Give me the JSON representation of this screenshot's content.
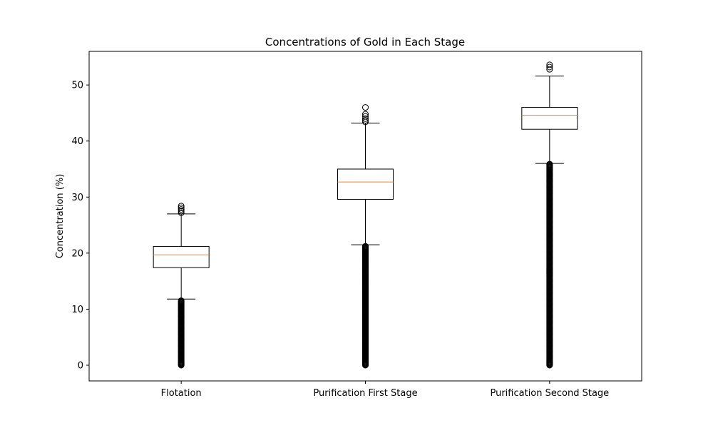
{
  "chart_data": {
    "type": "box",
    "title": "Concentrations of Gold in Each Stage",
    "xlabel": "",
    "ylabel": "Concentration (%)",
    "ylim": [
      -2.8,
      56.0
    ],
    "yticks": [
      0,
      10,
      20,
      30,
      40,
      50
    ],
    "grid": false,
    "categories": [
      "Flotation",
      "Purification First Stage",
      "Purification Second Stage"
    ],
    "boxes": [
      {
        "category": "Flotation",
        "whisker_low": 11.8,
        "q1": 17.4,
        "median": 19.7,
        "q3": 21.2,
        "whisker_high": 27.0,
        "outliers_high": [
          27.2,
          27.5,
          27.8,
          28.1,
          28.4
        ],
        "outliers_low_range": [
          0.0,
          11.6
        ]
      },
      {
        "category": "Purification First Stage",
        "whisker_low": 21.5,
        "q1": 29.6,
        "median": 32.7,
        "q3": 35.0,
        "whisker_high": 43.2,
        "outliers_high": [
          43.4,
          43.7,
          44.0,
          44.4,
          44.8,
          46.0
        ],
        "outliers_low_range": [
          0.0,
          21.3
        ]
      },
      {
        "category": "Purification Second Stage",
        "whisker_low": 36.0,
        "q1": 42.1,
        "median": 44.6,
        "q3": 46.0,
        "whisker_high": 51.6,
        "outliers_high": [
          52.8,
          53.2,
          53.6
        ],
        "outliers_low_range": [
          0.0,
          35.9
        ]
      }
    ],
    "colors": {
      "box": "#000000",
      "median": "#ff7f0e",
      "outlier": "#000000"
    }
  }
}
